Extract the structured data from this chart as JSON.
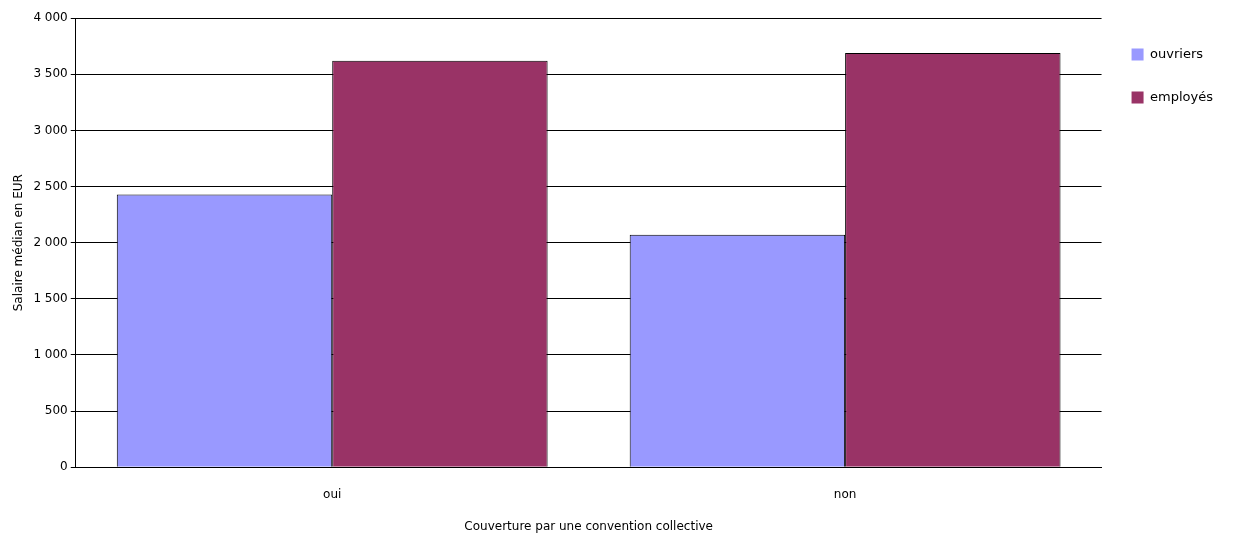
{
  "chart_data": {
    "type": "bar",
    "xlabel": "Couverture par une convention collective",
    "ylabel": "Salaire médian en EUR",
    "categories": [
      "oui",
      "non"
    ],
    "series": [
      {
        "name": "ouvriers",
        "color": "#9999ff",
        "values": [
          2430,
          2070
        ]
      },
      {
        "name": "employés",
        "color": "#993366",
        "values": [
          3620,
          3690
        ]
      }
    ],
    "ylim": [
      0,
      4000
    ],
    "yticks": [
      {
        "value": 0,
        "label": "0"
      },
      {
        "value": 500,
        "label": "500"
      },
      {
        "value": 1000,
        "label": "1 000"
      },
      {
        "value": 1500,
        "label": "1 500"
      },
      {
        "value": 2000,
        "label": "2 000"
      },
      {
        "value": 2500,
        "label": "2 500"
      },
      {
        "value": 3000,
        "label": "3 000"
      },
      {
        "value": 3500,
        "label": "3 500"
      },
      {
        "value": 4000,
        "label": "4 000"
      }
    ],
    "grid": "y",
    "legend": "top right"
  }
}
